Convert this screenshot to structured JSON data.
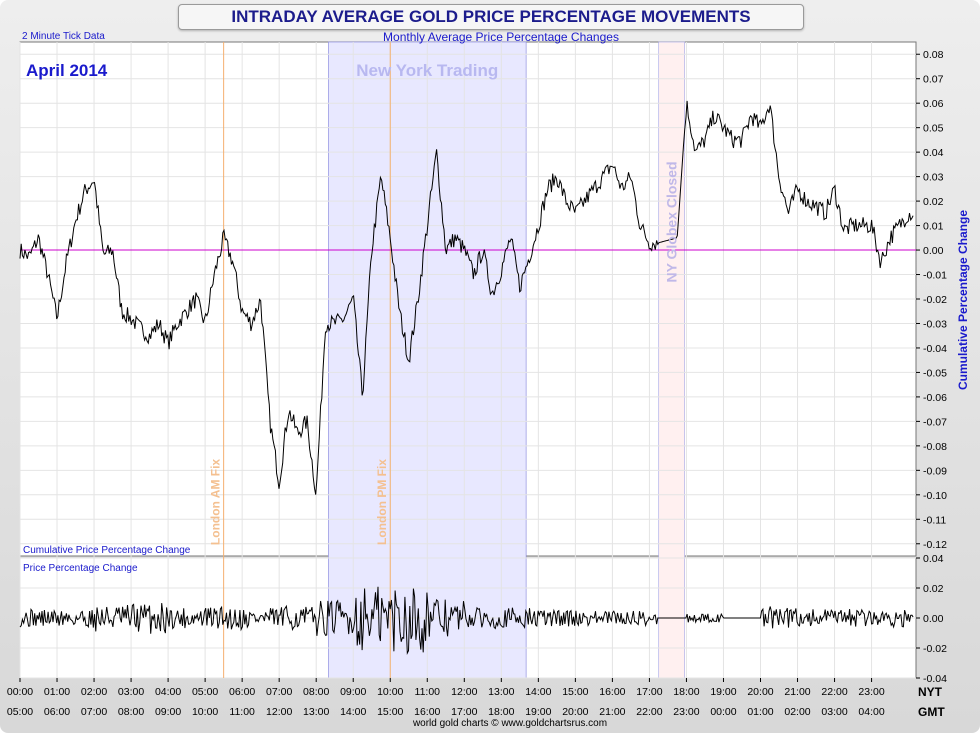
{
  "header": {
    "title": "INTRADAY AVERAGE GOLD PRICE PERCENTAGE MOVEMENTS",
    "subtitle": "Monthly Average Price Percentage Changes",
    "tick_note": "2 Minute Tick Data",
    "month": "April 2014",
    "credit": "world gold charts © www.goldchartsrus.com"
  },
  "colors": {
    "line": "#000000",
    "zero_line": "#cc00cc",
    "ny_band": "#e8e8ff",
    "closed_band": "#fff0f0",
    "fix_line": "#f4b070",
    "label_blue": "#1a1acc"
  },
  "annotations": {
    "ny_trading": "New York Trading",
    "ny_globex_closed": "NY Globex Closed",
    "london_am_fix": "London AM Fix",
    "london_pm_fix": "London PM Fix"
  },
  "chart_data": [
    {
      "type": "line",
      "name": "cumulative",
      "ylabel": "Cumulative Percentage Change",
      "panel_label": "Cumulative Price Percentage Change",
      "ylim": [
        -0.125,
        0.085
      ],
      "yticks": [
        "0.08",
        "0.07",
        "0.06",
        "0.05",
        "0.04",
        "0.03",
        "0.02",
        "0.01",
        "0.00",
        "-0.01",
        "-0.02",
        "-0.03",
        "-0.04",
        "-0.05",
        "-0.06",
        "-0.07",
        "-0.08",
        "-0.09",
        "-0.10",
        "-0.11",
        "-0.12"
      ],
      "xlim": [
        0,
        24.2
      ],
      "x_hours_nyt": [
        0,
        0.25,
        0.5,
        0.75,
        1,
        1.25,
        1.5,
        1.75,
        2,
        2.25,
        2.5,
        2.75,
        3,
        3.25,
        3.5,
        3.75,
        4,
        4.25,
        4.5,
        4.75,
        5,
        5.25,
        5.5,
        5.75,
        6,
        6.25,
        6.5,
        6.75,
        7,
        7.25,
        7.5,
        7.75,
        8,
        8.25,
        8.5,
        8.75,
        9,
        9.25,
        9.5,
        9.75,
        10,
        10.25,
        10.5,
        10.75,
        11,
        11.25,
        11.5,
        11.75,
        12,
        12.25,
        12.5,
        12.75,
        13,
        13.25,
        13.5,
        13.75,
        14,
        14.25,
        14.5,
        14.75,
        15,
        15.25,
        15.5,
        15.75,
        16,
        16.25,
        16.5,
        16.75,
        17,
        17.25,
        17.5,
        17.75,
        18,
        18.25,
        18.5,
        18.75,
        19,
        19.25,
        19.5,
        19.75,
        20,
        20.25,
        20.5,
        20.75,
        21,
        21.25,
        21.5,
        21.75,
        22,
        22.25,
        22.5,
        22.75,
        23,
        23.25,
        23.5,
        23.75,
        24,
        24.15
      ],
      "values": [
        0.0,
        -0.003,
        0.005,
        -0.01,
        -0.028,
        -0.005,
        0.012,
        0.024,
        0.029,
        -0.002,
        0.0,
        -0.025,
        -0.028,
        -0.032,
        -0.035,
        -0.03,
        -0.038,
        -0.03,
        -0.025,
        -0.02,
        -0.03,
        -0.01,
        0.005,
        -0.005,
        -0.025,
        -0.03,
        -0.02,
        -0.07,
        -0.095,
        -0.065,
        -0.075,
        -0.07,
        -0.1,
        -0.03,
        -0.03,
        -0.028,
        -0.02,
        -0.06,
        0.0,
        0.03,
        0.005,
        -0.025,
        -0.045,
        -0.02,
        0.01,
        0.04,
        0.0,
        0.005,
        0.0,
        -0.01,
        0.0,
        -0.018,
        -0.008,
        0.005,
        -0.015,
        -0.003,
        0.01,
        0.025,
        0.03,
        0.02,
        0.015,
        0.02,
        0.025,
        0.03,
        0.035,
        0.025,
        0.03,
        0.01,
        0.003,
        0.003,
        0.004,
        0.005,
        0.06,
        0.04,
        0.045,
        0.055,
        0.05,
        0.045,
        0.045,
        0.055,
        0.05,
        0.06,
        0.03,
        0.015,
        0.025,
        0.02,
        0.018,
        0.015,
        0.025,
        0.008,
        0.01,
        0.01,
        0.01,
        -0.005,
        0.005,
        0.01,
        0.015,
        0.015
      ]
    },
    {
      "type": "line",
      "name": "per-tick",
      "panel_label": "Price Percentage Change",
      "ylim": [
        -0.04,
        0.04
      ],
      "yticks": [
        "0.04",
        "0.02",
        "0.00",
        "-0.02",
        "-0.04"
      ],
      "amplitude_by_hour_nyt": [
        0.006,
        0.007,
        0.009,
        0.011,
        0.007,
        0.008,
        0.007,
        0.008,
        0.012,
        0.022,
        0.024,
        0.013,
        0.007,
        0.007,
        0.006,
        0.005,
        0.005,
        0.005,
        0.003,
        0.0,
        0.008,
        0.006,
        0.006,
        0.006,
        0.005
      ],
      "flat_window_nyt": [
        17.2,
        18.0
      ]
    }
  ],
  "x_axis": {
    "nyt_label": "NYT",
    "gmt_label": "GMT",
    "nyt_ticks": [
      "00:00",
      "01:00",
      "02:00",
      "03:00",
      "04:00",
      "05:00",
      "06:00",
      "07:00",
      "08:00",
      "09:00",
      "10:00",
      "11:00",
      "12:00",
      "13:00",
      "14:00",
      "15:00",
      "16:00",
      "17:00",
      "18:00",
      "19:00",
      "20:00",
      "21:00",
      "22:00",
      "23:00"
    ],
    "gmt_ticks": [
      "05:00",
      "06:00",
      "07:00",
      "08:00",
      "09:00",
      "10:00",
      "11:00",
      "12:00",
      "13:00",
      "14:00",
      "15:00",
      "16:00",
      "17:00",
      "18:00",
      "19:00",
      "20:00",
      "21:00",
      "22:00",
      "23:00",
      "00:00",
      "01:00",
      "02:00",
      "03:00",
      "04:00"
    ]
  },
  "markers_nyt": {
    "london_am_fix": 5.5,
    "london_pm_fix": 10.0,
    "ny_trading_start": 8.33,
    "ny_trading_end": 13.67,
    "globex_closed_start": 17.25,
    "globex_closed_end": 17.95
  }
}
